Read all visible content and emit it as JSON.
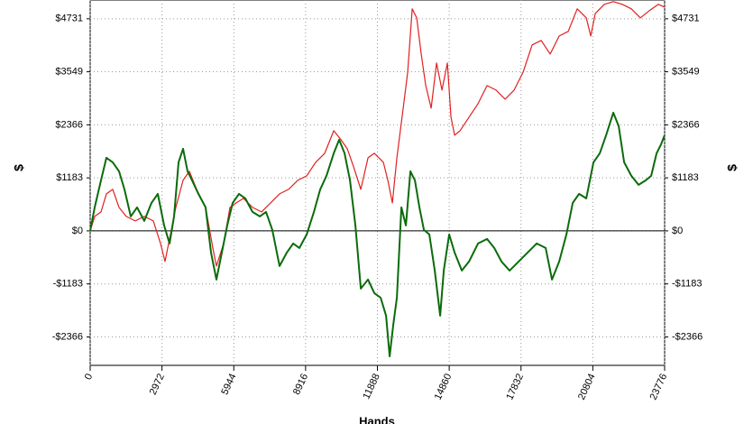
{
  "chart_data": {
    "type": "line",
    "x_label": "Hands",
    "y_label": "$",
    "y2_label": "$",
    "xlim": [
      0,
      23776
    ],
    "ylim": [
      -3000,
      5150
    ],
    "xticks": [
      0,
      2972,
      5944,
      8916,
      11888,
      14860,
      17832,
      20804,
      23776
    ],
    "yticks": [
      {
        "value": -2366,
        "label": "-$2366"
      },
      {
        "value": -1183,
        "label": "-$1183"
      },
      {
        "value": 0,
        "label": "$0"
      },
      {
        "value": 1183,
        "label": "$1183"
      },
      {
        "value": 2366,
        "label": "$2366"
      },
      {
        "value": 3549,
        "label": "$3549"
      },
      {
        "value": 4731,
        "label": "$4731"
      }
    ],
    "grid": true,
    "series": [
      {
        "color": "#e02020",
        "x": [
          0,
          187,
          448,
          672,
          933,
          1195,
          1493,
          1867,
          2240,
          2613,
          2912,
          3098,
          3285,
          3547,
          3845,
          4107,
          4405,
          4779,
          5077,
          5227,
          5525,
          5787,
          6048,
          6347,
          6720,
          7093,
          7467,
          7840,
          8213,
          8587,
          8960,
          9333,
          9707,
          10080,
          10379,
          10640,
          10901,
          11200,
          11499,
          11760,
          12133,
          12320,
          12507,
          12693,
          12955,
          13141,
          13328,
          13515,
          13701,
          13888,
          14112,
          14336,
          14560,
          14784,
          14933,
          15083,
          15307,
          15680,
          16053,
          16427,
          16800,
          17173,
          17547,
          17920,
          18293,
          18667,
          19040,
          19413,
          19787,
          20160,
          20533,
          20720,
          20907,
          21280,
          21653,
          22027,
          22400,
          22773,
          23147,
          23520,
          23776
        ],
        "values": [
          0,
          322,
          423,
          825,
          926,
          523,
          322,
          221,
          322,
          221,
          -282,
          -684,
          -181,
          523,
          1127,
          1329,
          926,
          523,
          -382,
          -785,
          -282,
          523,
          624,
          725,
          523,
          423,
          624,
          825,
          926,
          1127,
          1228,
          1530,
          1731,
          2234,
          2033,
          1832,
          1429,
          926,
          1631,
          1731,
          1530,
          1127,
          624,
          1631,
          2738,
          3543,
          4952,
          4751,
          3945,
          3241,
          2738,
          3744,
          3140,
          3744,
          2536,
          2134,
          2234,
          2536,
          2838,
          3241,
          3140,
          2939,
          3140,
          3543,
          4147,
          4248,
          3945,
          4348,
          4449,
          4952,
          4751,
          4348,
          4851,
          5053,
          5113,
          5053,
          4952,
          4751,
          4912,
          5053,
          4992
        ]
      },
      {
        "color": "#0b6b0b",
        "x": [
          0,
          187,
          448,
          672,
          933,
          1195,
          1419,
          1680,
          1941,
          2240,
          2539,
          2800,
          3061,
          3285,
          3472,
          3659,
          3845,
          4032,
          4219,
          4480,
          4779,
          5003,
          5227,
          5451,
          5675,
          5899,
          6160,
          6421,
          6720,
          7019,
          7280,
          7541,
          7840,
          8139,
          8400,
          8661,
          8960,
          9259,
          9520,
          9781,
          10080,
          10304,
          10528,
          10752,
          10976,
          11200,
          11499,
          11760,
          12021,
          12245,
          12395,
          12544,
          12693,
          12880,
          13067,
          13253,
          13440,
          13627,
          13813,
          14037,
          14261,
          14485,
          14635,
          14859,
          15083,
          15381,
          15680,
          16053,
          16427,
          16725,
          17024,
          17360,
          17733,
          18107,
          18480,
          18853,
          19115,
          19413,
          19712,
          19973,
          20235,
          20533,
          20832,
          21093,
          21355,
          21653,
          21877,
          22101,
          22400,
          22699,
          22997,
          23221,
          23445,
          23632,
          23776
        ],
        "values": [
          0,
          523,
          1127,
          1631,
          1530,
          1329,
          926,
          322,
          523,
          221,
          624,
          825,
          121,
          -282,
          322,
          1530,
          1832,
          1329,
          1127,
          825,
          523,
          -483,
          -1087,
          -483,
          121,
          624,
          825,
          725,
          423,
          322,
          423,
          20,
          -785,
          -483,
          -282,
          -382,
          -81,
          423,
          926,
          1228,
          1731,
          2033,
          1731,
          1127,
          121,
          -1288,
          -1087,
          -1389,
          -1490,
          -1892,
          -2798,
          -2094,
          -1490,
          523,
          121,
          1329,
          1127,
          523,
          20,
          -81,
          -886,
          -1892,
          -886,
          -81,
          -483,
          -886,
          -684,
          -282,
          -181,
          -382,
          -684,
          -886,
          -684,
          -483,
          -282,
          -382,
          -1087,
          -684,
          -81,
          624,
          825,
          725,
          1530,
          1731,
          2134,
          2637,
          2335,
          1530,
          1228,
          1027,
          1127,
          1228,
          1731,
          1933,
          2134
        ]
      }
    ]
  }
}
